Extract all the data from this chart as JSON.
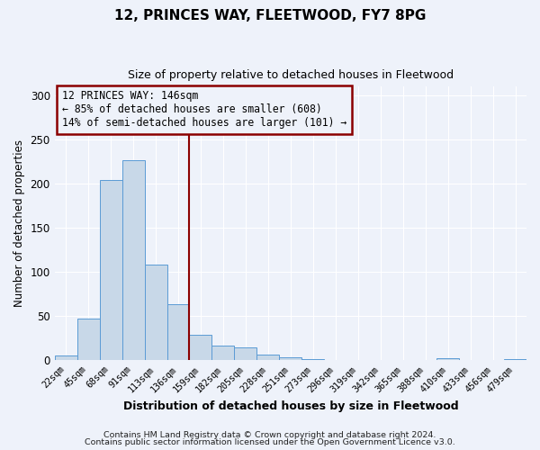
{
  "title": "12, PRINCES WAY, FLEETWOOD, FY7 8PG",
  "subtitle": "Size of property relative to detached houses in Fleetwood",
  "xlabel": "Distribution of detached houses by size in Fleetwood",
  "ylabel": "Number of detached properties",
  "bin_labels": [
    "22sqm",
    "45sqm",
    "68sqm",
    "91sqm",
    "113sqm",
    "136sqm",
    "159sqm",
    "182sqm",
    "205sqm",
    "228sqm",
    "251sqm",
    "273sqm",
    "296sqm",
    "319sqm",
    "342sqm",
    "365sqm",
    "388sqm",
    "410sqm",
    "433sqm",
    "456sqm",
    "479sqm"
  ],
  "bar_heights": [
    5,
    47,
    204,
    226,
    108,
    63,
    29,
    16,
    14,
    6,
    3,
    1,
    0,
    0,
    0,
    0,
    0,
    2,
    0,
    0,
    1
  ],
  "bar_color": "#c8d8e8",
  "bar_edge_color": "#5b9bd5",
  "ylim": [
    0,
    310
  ],
  "yticks": [
    0,
    50,
    100,
    150,
    200,
    250,
    300
  ],
  "vline_x_index": 5.5,
  "vline_color": "#8b0000",
  "annotation_line1": "12 PRINCES WAY: 146sqm",
  "annotation_line2": "← 85% of detached houses are smaller (608)",
  "annotation_line3": "14% of semi-detached houses are larger (101) →",
  "annotation_box_color": "#8b0000",
  "footnote1": "Contains HM Land Registry data © Crown copyright and database right 2024.",
  "footnote2": "Contains public sector information licensed under the Open Government Licence v3.0.",
  "bg_color": "#eef2fa",
  "grid_color": "#ffffff"
}
